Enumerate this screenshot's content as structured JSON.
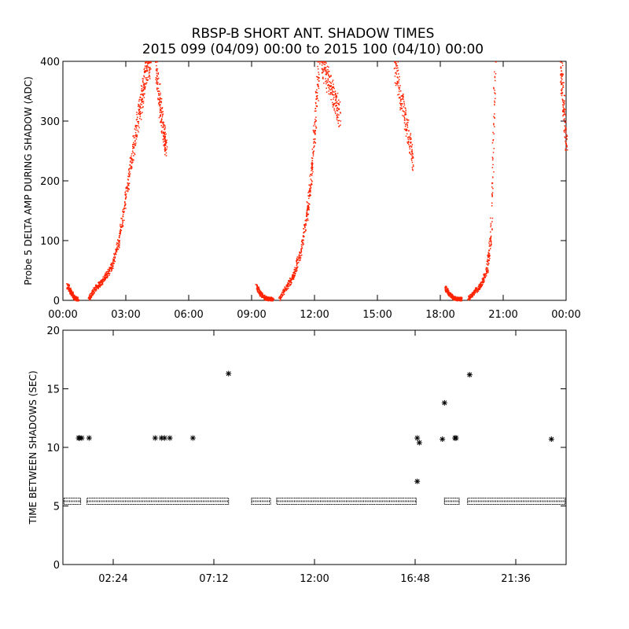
{
  "title": {
    "line1": "RBSP-B SHORT ANT. SHADOW TIMES",
    "line2": "2015 099 (04/09) 00:00 to 2015 100 (04/10) 00:00"
  },
  "colors": {
    "points": "#ff2200",
    "stars": "#000000",
    "axes": "#000000"
  },
  "chart_data": [
    {
      "type": "scatter",
      "ylabel": "Probe 5 DELTA AMP DURING SHADOW (ADC)",
      "xlabel": "",
      "xlim_hours": [
        0,
        24
      ],
      "ylim": [
        0,
        400
      ],
      "x_tick_labels": [
        "00:00",
        "03:00",
        "06:00",
        "09:00",
        "12:00",
        "15:00",
        "18:00",
        "21:00",
        "00:00"
      ],
      "x_ticks_hours": [
        0,
        3,
        6,
        9,
        12,
        15,
        18,
        21,
        24
      ],
      "y_tick_labels": [
        "0",
        "100",
        "200",
        "300",
        "400"
      ],
      "y_ticks": [
        0,
        100,
        200,
        300,
        400
      ],
      "segments": [
        {
          "x": [
            0.2,
            0.35,
            0.5,
            0.6,
            0.7
          ],
          "y": [
            25,
            15,
            7,
            3,
            3
          ]
        },
        {
          "x": [
            1.2,
            1.5,
            1.8,
            2.1,
            2.4,
            2.7,
            3.0,
            3.3,
            3.6,
            3.8,
            4.0,
            4.15
          ],
          "y": [
            3,
            20,
            30,
            45,
            65,
            110,
            180,
            250,
            310,
            355,
            395,
            400
          ]
        },
        {
          "x": [
            4.4,
            4.6,
            4.8,
            4.9
          ],
          "y": [
            400,
            330,
            280,
            255
          ]
        },
        {
          "x": [
            9.2,
            9.4,
            9.6,
            9.8,
            10.0
          ],
          "y": [
            25,
            12,
            5,
            3,
            3
          ]
        },
        {
          "x": [
            10.3,
            10.7,
            11.0,
            11.3,
            11.6,
            11.8,
            12.0,
            12.2
          ],
          "y": [
            3,
            25,
            45,
            80,
            140,
            200,
            290,
            400
          ]
        },
        {
          "x": [
            12.3,
            12.6,
            12.9,
            13.2
          ],
          "y": [
            400,
            370,
            340,
            310
          ]
        },
        {
          "x": [
            15.8,
            16.1,
            16.4,
            16.7
          ],
          "y": [
            400,
            340,
            290,
            230
          ]
        },
        {
          "x": [
            18.2,
            18.4,
            18.6,
            18.8,
            19.0
          ],
          "y": [
            22,
            12,
            5,
            3,
            3
          ]
        },
        {
          "x": [
            19.3,
            19.6,
            19.9,
            20.2,
            20.4,
            20.6
          ],
          "y": [
            3,
            15,
            25,
            50,
            110,
            400
          ]
        },
        {
          "x": [
            23.7,
            23.85,
            24.0
          ],
          "y": [
            400,
            330,
            260
          ]
        }
      ]
    },
    {
      "type": "scatter",
      "ylabel": "TIME BETWEEN SHADOWS (SEC)",
      "xlabel": "",
      "xlim_hours": [
        0,
        24
      ],
      "ylim": [
        0,
        20
      ],
      "x_tick_labels": [
        "02:24",
        "07:12",
        "12:00",
        "16:48",
        "21:36"
      ],
      "x_ticks_hours": [
        2.4,
        7.2,
        12.0,
        16.8,
        21.6
      ],
      "y_tick_labels": [
        "0",
        "5",
        "10",
        "15",
        "20"
      ],
      "y_ticks": [
        0,
        5,
        10,
        15,
        20
      ],
      "baseline_segments": [
        {
          "from": 0.05,
          "to": 0.85,
          "y": 5.4
        },
        {
          "from": 1.15,
          "to": 7.9,
          "y": 5.4
        },
        {
          "from": 9.0,
          "to": 9.9,
          "y": 5.4
        },
        {
          "from": 10.2,
          "to": 16.85,
          "y": 5.4
        },
        {
          "from": 18.2,
          "to": 18.9,
          "y": 5.4
        },
        {
          "from": 19.3,
          "to": 23.95,
          "y": 5.4
        }
      ],
      "outliers": {
        "x": [
          0.75,
          0.8,
          0.9,
          1.25,
          4.4,
          4.7,
          4.85,
          5.1,
          6.2,
          7.9,
          16.9,
          17.0,
          16.9,
          18.2,
          18.1,
          18.7,
          18.75,
          19.4,
          23.3
        ],
        "y": [
          10.8,
          10.8,
          10.8,
          10.8,
          10.8,
          10.8,
          10.8,
          10.8,
          10.8,
          16.3,
          10.8,
          10.4,
          7.1,
          13.8,
          10.7,
          10.8,
          10.8,
          16.2,
          10.7
        ]
      }
    }
  ]
}
